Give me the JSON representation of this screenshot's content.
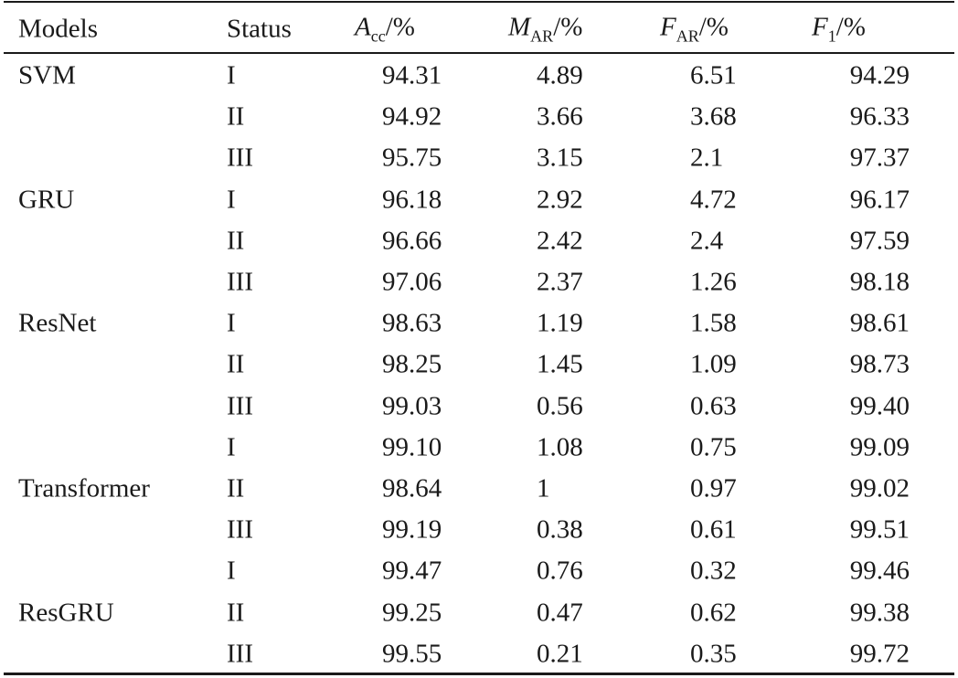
{
  "table": {
    "header": [
      {
        "text": "Models"
      },
      {
        "text": "Status"
      },
      {
        "symbol": "A",
        "subscript": "cc",
        "unit": "/%"
      },
      {
        "symbol": "M",
        "subscript": "AR",
        "unit": "/%"
      },
      {
        "symbol": "F",
        "subscript": "AR",
        "unit": "/%"
      },
      {
        "symbol": "F",
        "subscript": "1",
        "unit": "/%"
      }
    ],
    "groups": [
      {
        "model": "SVM",
        "rows": [
          [
            "I",
            "94.31",
            "4.89",
            "6.51",
            "94.29"
          ],
          [
            "II",
            "94.92",
            "3.66",
            "3.68",
            "96.33"
          ],
          [
            "III",
            "95.75",
            "3.15",
            "2.1",
            "97.37"
          ]
        ]
      },
      {
        "model": "GRU",
        "rows": [
          [
            "I",
            "96.18",
            "2.92",
            "4.72",
            "96.17"
          ],
          [
            "II",
            "96.66",
            "2.42",
            "2.4",
            "97.59"
          ],
          [
            "III",
            "97.06",
            "2.37",
            "1.26",
            "98.18"
          ]
        ]
      },
      {
        "model": "ResNet",
        "rows": [
          [
            "I",
            "98.63",
            "1.19",
            "1.58",
            "98.61"
          ],
          [
            "II",
            "98.25",
            "1.45",
            "1.09",
            "98.73"
          ],
          [
            "III",
            "99.03",
            "0.56",
            "0.63",
            "99.40"
          ]
        ]
      },
      {
        "model": "Transformer",
        "rows": [
          [
            "I",
            "99.10",
            "1.08",
            "0.75",
            "99.09"
          ],
          [
            "II",
            "98.64",
            "1",
            "0.97",
            "99.02"
          ],
          [
            "III",
            "99.19",
            "0.38",
            "0.61",
            "99.51"
          ]
        ]
      },
      {
        "model": "ResGRU",
        "rows": [
          [
            "I",
            "99.47",
            "0.76",
            "0.32",
            "99.46"
          ],
          [
            "II",
            "99.25",
            "0.47",
            "0.62",
            "99.38"
          ],
          [
            "III",
            "99.55",
            "0.21",
            "0.35",
            "99.72"
          ]
        ]
      }
    ]
  }
}
